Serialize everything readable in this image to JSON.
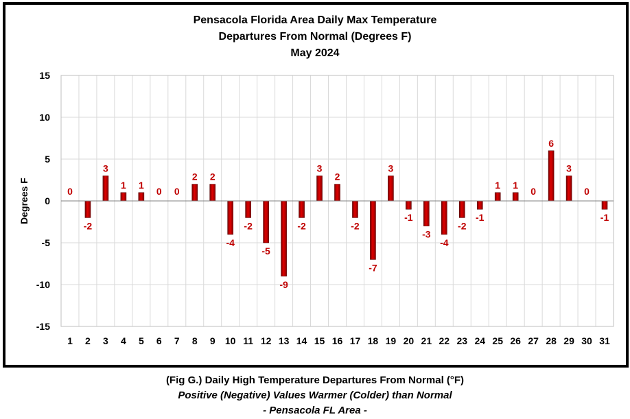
{
  "chart_data": {
    "type": "bar",
    "title_lines": [
      "Pensacola Florida Area Daily Max Temperature",
      "Departures From Normal (Degrees F)",
      "May 2024"
    ],
    "xlabel": "",
    "ylabel": "Degrees F",
    "ylim": [
      -15,
      15
    ],
    "yticks": [
      15,
      10,
      5,
      0,
      -5,
      -10,
      -15
    ],
    "ytick_labels": [
      "15",
      "10",
      "5",
      "0",
      "-5",
      "-10",
      "-15"
    ],
    "grid": true,
    "legend": "none",
    "categories": [
      "1",
      "2",
      "3",
      "4",
      "5",
      "6",
      "7",
      "8",
      "9",
      "10",
      "11",
      "12",
      "13",
      "14",
      "15",
      "16",
      "17",
      "18",
      "19",
      "20",
      "21",
      "22",
      "23",
      "24",
      "25",
      "26",
      "27",
      "28",
      "29",
      "30",
      "31"
    ],
    "values": [
      0,
      -2,
      3,
      1,
      1,
      0,
      0,
      2,
      2,
      -4,
      -2,
      -5,
      -9,
      -2,
      3,
      2,
      -2,
      -7,
      3,
      -1,
      -3,
      -4,
      -2,
      -1,
      1,
      1,
      0,
      6,
      3,
      0,
      -1
    ],
    "bar_color": "#cc0000",
    "label_color": "#c00000"
  },
  "caption": {
    "line1": "(Fig G.) Daily High Temperature Departures From Normal (°F)",
    "line2": "Positive (Negative) Values Warmer (Colder) than Normal",
    "line3": "- Pensacola FL Area -"
  }
}
